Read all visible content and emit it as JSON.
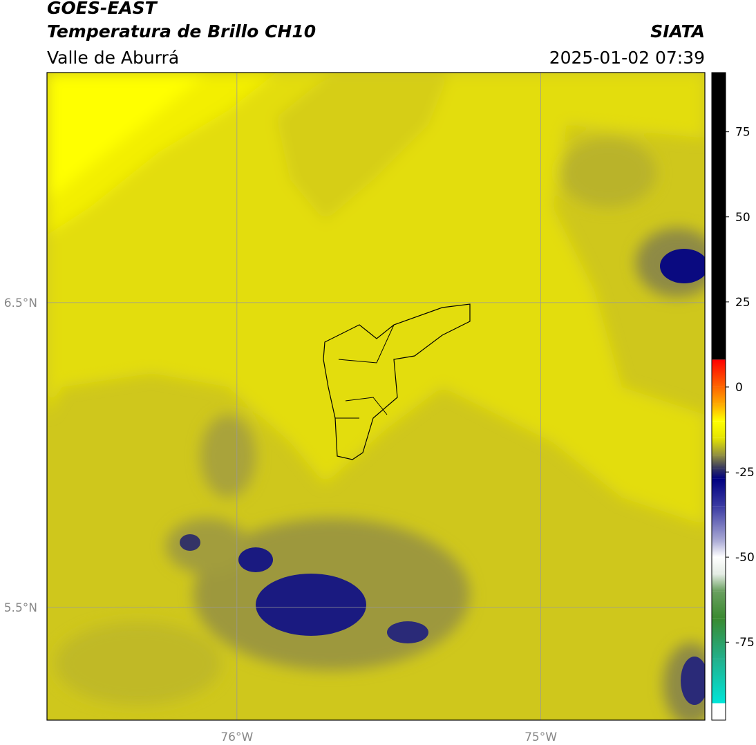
{
  "header": {
    "title": "GOES-EAST",
    "subtitle": "Temperatura de Brillo CH10",
    "region": "Valle de Aburrá",
    "source": "SIATA",
    "datetime": "2025-01-02 07:39"
  },
  "map_data": {
    "type": "map",
    "xlim": [
      -76.625,
      -74.46
    ],
    "ylim": [
      5.13,
      7.255
    ],
    "xticks": [
      {
        "value": -76,
        "label": "76°W"
      },
      {
        "value": -75,
        "label": "75°W"
      }
    ],
    "yticks": [
      {
        "value": 5.5,
        "label": "5.5°N"
      },
      {
        "value": 6.5,
        "label": "6.5°N"
      }
    ],
    "grid": true
  },
  "colorbar": {
    "lim": [
      -97.9,
      92.4
    ],
    "ticks": [
      -75,
      -50,
      -25,
      0,
      25,
      50,
      75
    ],
    "color_stops": [
      {
        "value": -97.9,
        "color": "#ffffff"
      },
      {
        "value": -93,
        "color": "#ffffff"
      },
      {
        "value": -92.9,
        "color": "#00e5d8"
      },
      {
        "value": -80,
        "color": "#22b08c"
      },
      {
        "value": -68,
        "color": "#3a8a30"
      },
      {
        "value": -60,
        "color": "#6aa060"
      },
      {
        "value": -55,
        "color": "#e4ece4"
      },
      {
        "value": -50,
        "color": "#ffffff"
      },
      {
        "value": -45,
        "color": "#a8a8d4"
      },
      {
        "value": -35,
        "color": "#3a3aa2"
      },
      {
        "value": -27,
        "color": "#000080"
      },
      {
        "value": -24,
        "color": "#333360"
      },
      {
        "value": -20,
        "color": "#929040"
      },
      {
        "value": -15,
        "color": "#e5e500"
      },
      {
        "value": -10,
        "color": "#ffff00"
      },
      {
        "value": -5,
        "color": "#ffaa00"
      },
      {
        "value": 0,
        "color": "#ff6600"
      },
      {
        "value": 8,
        "color": "#ff0000"
      },
      {
        "value": 8.1,
        "color": "#000000"
      },
      {
        "value": 92.4,
        "color": "#000000"
      }
    ]
  }
}
